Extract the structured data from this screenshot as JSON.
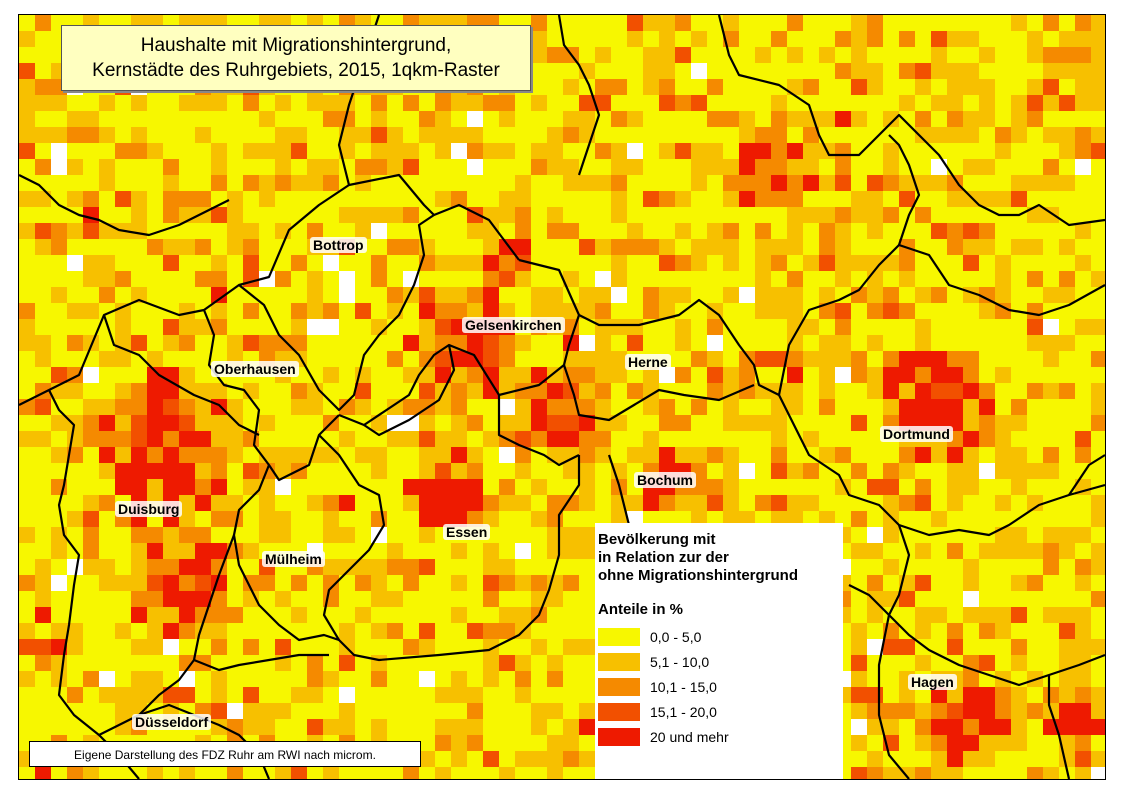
{
  "title": {
    "line1": "Haushalte mit Migrationshintergrund,",
    "line2": "Kernstädte des Ruhrgebiets, 2015, 1qkm-Raster"
  },
  "cities": [
    {
      "name": "Bottrop"
    },
    {
      "name": "Gelsenkirchen"
    },
    {
      "name": "Oberhausen"
    },
    {
      "name": "Herne"
    },
    {
      "name": "Dortmund"
    },
    {
      "name": "Bochum"
    },
    {
      "name": "Duisburg"
    },
    {
      "name": "Essen"
    },
    {
      "name": "Mülheim"
    },
    {
      "name": "Hagen"
    },
    {
      "name": "Düsseldorf"
    }
  ],
  "legend": {
    "header1": "Bevölkerung mit",
    "header2": "in Relation zur der",
    "header3": "ohne Migrationshintergrund",
    "subtitle": "Anteile in %",
    "classes": [
      {
        "label": "0,0 - 5,0",
        "color": "#f7f700"
      },
      {
        "label": "5,1 - 10,0",
        "color": "#f7c000"
      },
      {
        "label": "10,1 - 15,0",
        "color": "#f58a00"
      },
      {
        "label": "15,1 - 20,0",
        "color": "#f25000"
      },
      {
        "label": "20 und mehr",
        "color": "#ee1a00"
      }
    ]
  },
  "credit": "Eigene Darstellung des FDZ Ruhr am RWI nach microm."
}
